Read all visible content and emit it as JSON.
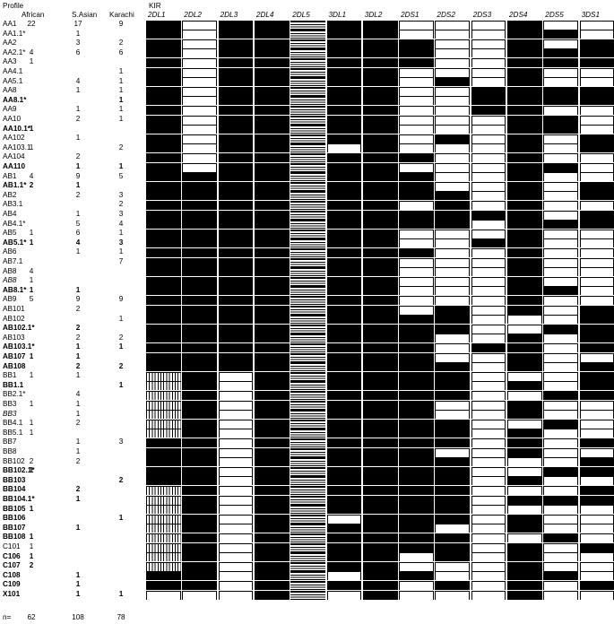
{
  "header": {
    "profile_label": "Profile",
    "african_label": "African",
    "sasian_label": "S.Asian",
    "karachi_label": "Karachi",
    "kir_label": "KIR"
  },
  "genes": [
    "2DL1",
    "2DL2",
    "2DL3",
    "2DL4",
    "2DL5",
    "3DL1",
    "3DL2",
    "2DS1",
    "2DS2",
    "2DS3",
    "2DS4",
    "2DS5",
    "3DS1"
  ],
  "rows": [
    {
      "name": "AA1",
      "style": "normal",
      "african": "22",
      "sasian": "17",
      "karachi": "9",
      "cells": "PAPPHPPAAAPAA"
    },
    {
      "name": "AA1.1*",
      "style": "normal",
      "african": "",
      "sasian": "1",
      "karachi": "",
      "cells": "PAPPHPPAAAPPA"
    },
    {
      "name": "AA2",
      "style": "normal",
      "african": "",
      "sasian": "3",
      "karachi": "2",
      "cells": "PAPPHPPPAAPAP"
    },
    {
      "name": "AA2.1*",
      "style": "normal",
      "african": "4",
      "sasian": "6",
      "karachi": "6",
      "cells": "PAPPHPPPAAPPP"
    },
    {
      "name": "AA3",
      "style": "normal",
      "african": "1",
      "sasian": "",
      "karachi": "",
      "cells": "PAPPHPPPAAPPP"
    },
    {
      "name": "AA4.1",
      "style": "normal",
      "african": "",
      "sasian": "",
      "karachi": "1",
      "cells": "PAPPHPPAAAPAA"
    },
    {
      "name": "AA5.1",
      "style": "normal",
      "african": "",
      "sasian": "4",
      "karachi": "1",
      "cells": "PAPPHPPAPAPAA"
    },
    {
      "name": "AA8",
      "style": "normal",
      "african": "",
      "sasian": "1",
      "karachi": "1",
      "cells": "PAPPHPPAAPPPP"
    },
    {
      "name": "AA8.1*",
      "style": "bold",
      "african": "",
      "sasian": "",
      "karachi": "1",
      "cells": "PAPPHPPAAPPPP"
    },
    {
      "name": "AA9",
      "style": "normal",
      "african": "",
      "sasian": "1",
      "karachi": "1",
      "cells": "PAPPHPPAAPPAA"
    },
    {
      "name": "AA10",
      "style": "normal",
      "african": "",
      "sasian": "2",
      "karachi": "1",
      "cells": "PAPPHPPAAAPPA"
    },
    {
      "name": "AA10.1*",
      "style": "bold",
      "african": "1",
      "sasian": "",
      "karachi": "",
      "cells": "PAPPHPPAAAPPA"
    },
    {
      "name": "AA102",
      "style": "normal",
      "african": "",
      "sasian": "1",
      "karachi": "",
      "cells": "PAPPHPPAPAPAP"
    },
    {
      "name": "AA103.1",
      "style": "normal",
      "african": "1",
      "sasian": "",
      "karachi": "2",
      "cells": "PAPPHAPAAAPAP"
    },
    {
      "name": "AA104",
      "style": "normal",
      "african": "",
      "sasian": "2",
      "karachi": "",
      "cells": "PAPPHPPPAAPAA"
    },
    {
      "name": "AA110",
      "style": "bold",
      "african": "",
      "sasian": "1",
      "karachi": "1",
      "cells": "PAPPHPPAAAPPA"
    },
    {
      "name": "AB1",
      "style": "normal",
      "african": "4",
      "sasian": "9",
      "karachi": "5",
      "cells": "PPPPHPPPAAPAA"
    },
    {
      "name": "AB1.1*",
      "style": "bold",
      "african": "2",
      "sasian": "1",
      "karachi": "",
      "cells": "PPPPHPPPAAPAP"
    },
    {
      "name": "AB2",
      "style": "normal",
      "african": "",
      "sasian": "2",
      "karachi": "3",
      "cells": "PPPPHPPPPAPAP"
    },
    {
      "name": "AB3.1",
      "style": "normal",
      "african": "",
      "sasian": "",
      "karachi": "2",
      "cells": "PPPPHPPAPAPAA"
    },
    {
      "name": "AB4",
      "style": "normal",
      "african": "",
      "sasian": "1",
      "karachi": "3",
      "cells": "PPPPHPPPPPPAP"
    },
    {
      "name": "AB4.1*",
      "style": "normal",
      "african": "",
      "sasian": "5",
      "karachi": "4",
      "cells": "PPPPHPPPPAPPP"
    },
    {
      "name": "AB5",
      "style": "normal",
      "african": "1",
      "sasian": "6",
      "karachi": "1",
      "cells": "PPPPHPPAAAPAA"
    },
    {
      "name": "AB5.1*",
      "style": "bold",
      "african": "1",
      "sasian": "4",
      "karachi": "3",
      "cells": "PPPPHPPAAPPAA"
    },
    {
      "name": "AB6",
      "style": "normal",
      "african": "",
      "sasian": "1",
      "karachi": "1",
      "cells": "PPPPHPPPAAPAA"
    },
    {
      "name": "AB7.1",
      "style": "normal",
      "african": "",
      "sasian": "",
      "karachi": "7",
      "cells": "PPPPHPPAAAPAA"
    },
    {
      "name": "AB8",
      "style": "normal",
      "african": "4",
      "sasian": "",
      "karachi": "",
      "cells": "PPPPHPPAAAPAA"
    },
    {
      "name": "AB8",
      "style": "italic",
      "african": "1",
      "sasian": "",
      "karachi": "",
      "cells": "PPPPHPPAAAPAA"
    },
    {
      "name": "AB8.1*",
      "style": "bold",
      "african": "1",
      "sasian": "1",
      "karachi": "",
      "cells": "PPPPHPPAAAPPA"
    },
    {
      "name": "AB9",
      "style": "normal",
      "african": "5",
      "sasian": "9",
      "karachi": "9",
      "cells": "PPPPHPPAAAPAA"
    },
    {
      "name": "AB101",
      "style": "normal",
      "african": "",
      "sasian": "2",
      "karachi": "",
      "cells": "PPPPHPPAPAPAP"
    },
    {
      "name": "AB102",
      "style": "normal",
      "african": "",
      "sasian": "",
      "karachi": "1",
      "cells": "PPPPHPPPPAAAP"
    },
    {
      "name": "AB102.1*",
      "style": "bold",
      "african": "",
      "sasian": "2",
      "karachi": "",
      "cells": "PPPPHPPPPAAPP"
    },
    {
      "name": "AB103",
      "style": "normal",
      "african": "",
      "sasian": "2",
      "karachi": "2",
      "cells": "PPPPHPPPAAPAP"
    },
    {
      "name": "AB103.1*",
      "style": "bold",
      "african": "",
      "sasian": "1",
      "karachi": "1",
      "cells": "PPPPHPPPAPPAP"
    },
    {
      "name": "AB107",
      "style": "bold",
      "african": "1",
      "sasian": "1",
      "karachi": "",
      "cells": "PPPPHPPPAAPAA"
    },
    {
      "name": "AB108",
      "style": "bold",
      "african": "",
      "sasian": "2",
      "karachi": "2",
      "cells": "PPPPHPPPPAPAP"
    },
    {
      "name": "BB1",
      "style": "normal",
      "african": "1",
      "sasian": "1",
      "karachi": "",
      "cells": "VPAPHPPPPAAAP"
    },
    {
      "name": "BB1.1",
      "style": "bold",
      "african": "",
      "sasian": "",
      "karachi": "1",
      "cells": "VPAPHPPPPAPAP"
    },
    {
      "name": "BB2.1*",
      "style": "normal",
      "african": "",
      "sasian": "4",
      "karachi": "",
      "cells": "VPAPHPPPPAAPP"
    },
    {
      "name": "BB3",
      "style": "normal",
      "african": "1",
      "sasian": "1",
      "karachi": "",
      "cells": "VPAPHPPPAAPAA"
    },
    {
      "name": "BB3",
      "style": "italic",
      "african": "",
      "sasian": "1",
      "karachi": "",
      "cells": "VPAPHPPPAAPAA"
    },
    {
      "name": "BB4.1",
      "style": "normal",
      "african": "1",
      "sasian": "2",
      "karachi": "",
      "cells": "VPAPHPPPPAAPA"
    },
    {
      "name": "BB5.1",
      "style": "normal",
      "african": "1",
      "sasian": "",
      "karachi": "",
      "cells": "VPAPHPPPPAPAA"
    },
    {
      "name": "BB7",
      "style": "normal",
      "african": "",
      "sasian": "1",
      "karachi": "3",
      "cells": "PPAPHPPPPAPAP"
    },
    {
      "name": "BB8",
      "style": "normal",
      "african": "",
      "sasian": "1",
      "karachi": "",
      "cells": "PPAPHPPPAAPAA"
    },
    {
      "name": "BB102",
      "style": "normal",
      "african": "2",
      "sasian": "2",
      "karachi": "",
      "cells": "PPAPHPPPPAAAP"
    },
    {
      "name": "BB102.1*",
      "style": "bold",
      "african": "1",
      "sasian": "",
      "karachi": "",
      "cells": "PPAPHPPPPAAPP"
    },
    {
      "name": "BB103",
      "style": "bold",
      "african": "",
      "sasian": "",
      "karachi": "2",
      "cells": "PPAPHPPPPAPAA"
    },
    {
      "name": "BB104",
      "style": "bold",
      "african": "",
      "sasian": "2",
      "karachi": "",
      "cells": "VPAPHPPPPAAAP"
    },
    {
      "name": "BB104.1*",
      "style": "bold",
      "african": "",
      "sasian": "1",
      "karachi": "",
      "cells": "VPAPHPPPPAPPP"
    },
    {
      "name": "BB105",
      "style": "bold",
      "african": "1",
      "sasian": "",
      "karachi": "",
      "cells": "VPAPHPPPPAAAA"
    },
    {
      "name": "BB106",
      "style": "bold",
      "african": "",
      "sasian": "",
      "karachi": "1",
      "cells": "VPAPHAPPPAPAA"
    },
    {
      "name": "BB107",
      "style": "bold",
      "african": "",
      "sasian": "1",
      "karachi": "",
      "cells": "VPAPHPPPAAPAA"
    },
    {
      "name": "BB108",
      "style": "bold",
      "african": "1",
      "sasian": "",
      "karachi": "",
      "cells": "VPAPHPPPPAAPA"
    },
    {
      "name": "C101",
      "style": "normal",
      "african": "1",
      "sasian": "",
      "karachi": "",
      "cells": "VPAPHPPPPAPAP"
    },
    {
      "name": "C106",
      "style": "bold",
      "african": "1",
      "sasian": "",
      "karachi": "",
      "cells": "VPAPHPPAPAPAA"
    },
    {
      "name": "C107",
      "style": "bold",
      "african": "2",
      "sasian": "",
      "karachi": "",
      "cells": "VPAPHPPAAAPAA"
    },
    {
      "name": "C108",
      "style": "bold",
      "african": "",
      "sasian": "1",
      "karachi": "",
      "cells": "PPAPHAPPAAPPA"
    },
    {
      "name": "C109",
      "style": "bold",
      "african": "",
      "sasian": "1",
      "karachi": "",
      "cells": "PPAPHPPAPAPAP"
    },
    {
      "name": "X101",
      "style": "bold",
      "african": "",
      "sasian": "1",
      "karachi": "1",
      "cells": "AAAPHAPAAAPAA"
    }
  ],
  "footer": {
    "n_label": "n=",
    "african_n": "62",
    "sasian_n": "108",
    "karachi_n": "78"
  }
}
